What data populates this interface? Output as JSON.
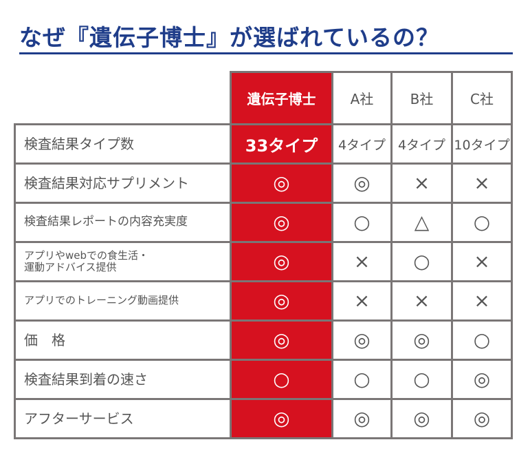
{
  "title": "なぜ『遺伝子博士』が選ばれているの？",
  "colors": {
    "title": "#1f3d8a",
    "brand": "#d6111f",
    "border": "#7a7676"
  },
  "columns": [
    "遺伝子博士",
    "A社",
    "B社",
    "C社"
  ],
  "rows": [
    {
      "label": "検査結果タイプ数",
      "values": [
        "33タイプ",
        "4タイプ",
        "4タイプ",
        "10タイプ"
      ]
    },
    {
      "label": "検査結果対応サプリメント",
      "values": [
        "◎",
        "◎",
        "×",
        "×"
      ]
    },
    {
      "label": "検査結果レポートの内容充実度",
      "values": [
        "◎",
        "○",
        "△",
        "○"
      ]
    },
    {
      "label": "アプリやwebでの食生活・",
      "label2": "運動アドバイス提供",
      "values": [
        "◎",
        "×",
        "○",
        "×"
      ]
    },
    {
      "label": "アプリでのトレーニング動画提供",
      "values": [
        "◎",
        "×",
        "×",
        "×"
      ]
    },
    {
      "label": "価　格",
      "values": [
        "◎",
        "◎",
        "◎",
        "○"
      ]
    },
    {
      "label": "検査結果到着の速さ",
      "values": [
        "○",
        "○",
        "○",
        "◎"
      ]
    },
    {
      "label": "アフターサービス",
      "values": [
        "◎",
        "◎",
        "◎",
        "◎"
      ]
    }
  ]
}
